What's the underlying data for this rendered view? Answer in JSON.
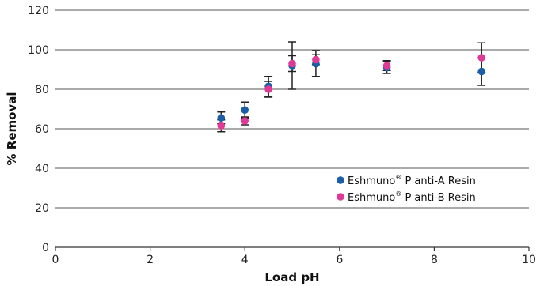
{
  "chart_data": {
    "type": "scatter",
    "title": "",
    "xlabel": "Load pH",
    "ylabel": "% Removal",
    "xlim": [
      0,
      10
    ],
    "ylim": [
      0,
      120
    ],
    "xticks": [
      0,
      2,
      4,
      6,
      8,
      10
    ],
    "yticks": [
      0,
      20,
      40,
      60,
      80,
      100,
      120
    ],
    "grid": "horizontal",
    "legend_position": "bottom-right",
    "series": [
      {
        "name": "Eshmuno® P anti-A Resin",
        "name_parts": [
          "Eshmuno",
          "®",
          " P anti-A Resin"
        ],
        "color": "#1a5ea8",
        "points": [
          {
            "x": 3.5,
            "y": 65.5,
            "err": 3
          },
          {
            "x": 4.0,
            "y": 69.5,
            "err": 4
          },
          {
            "x": 4.5,
            "y": 81.5,
            "err": 5
          },
          {
            "x": 5.0,
            "y": 92.0,
            "err": 12
          },
          {
            "x": 5.5,
            "y": 93.0,
            "err": 6.5
          },
          {
            "x": 7.0,
            "y": 91.0,
            "err": 3
          },
          {
            "x": 9.0,
            "y": 89.0,
            "err": 7
          }
        ]
      },
      {
        "name": "Eshmuno® P anti-B Resin",
        "name_parts": [
          "Eshmuno",
          "®",
          " P anti-B Resin"
        ],
        "color": "#e03a96",
        "points": [
          {
            "x": 3.5,
            "y": 61.5,
            "err": 3
          },
          {
            "x": 4.0,
            "y": 64.0,
            "err": 2
          },
          {
            "x": 4.5,
            "y": 80.0,
            "err": 4
          },
          {
            "x": 5.0,
            "y": 93.0,
            "err": 4
          },
          {
            "x": 5.5,
            "y": 95.0,
            "err": 2.5
          },
          {
            "x": 7.0,
            "y": 92.0,
            "err": 2.5
          },
          {
            "x": 9.0,
            "y": 96.0,
            "err": 7.5
          }
        ]
      }
    ]
  }
}
